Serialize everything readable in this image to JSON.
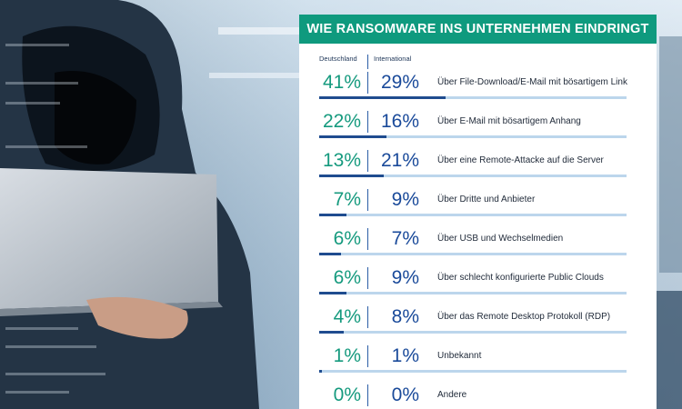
{
  "chart_data": {
    "type": "table",
    "title": "WIE RANSOMWARE INS UNTERNEHMEN EINDRINGT",
    "columns": [
      "Deutschland",
      "International"
    ],
    "rows": [
      {
        "label": "Über File-Download/E-Mail mit bösartigem Link",
        "de": "41%",
        "int": "29%",
        "bar": 41
      },
      {
        "label": "Über E-Mail mit bösartigem Anhang",
        "de": "22%",
        "int": "16%",
        "bar": 22
      },
      {
        "label": "Über eine Remote-Attacke auf die Server",
        "de": "13%",
        "int": "21%",
        "bar": 21
      },
      {
        "label": "Über Dritte und Anbieter",
        "de": "7%",
        "int": "9%",
        "bar": 9
      },
      {
        "label": "Über USB und Wechselmedien",
        "de": "6%",
        "int": "7%",
        "bar": 7
      },
      {
        "label": "Über schlecht konfigurierte Public Clouds",
        "de": "6%",
        "int": "9%",
        "bar": 9
      },
      {
        "label": "Über das Remote Desktop Protokoll (RDP)",
        "de": "4%",
        "int": "8%",
        "bar": 8
      },
      {
        "label": "Unbekannt",
        "de": "1%",
        "int": "1%",
        "bar": 1
      },
      {
        "label": "Andere",
        "de": "0%",
        "int": "0%",
        "bar": 0
      }
    ],
    "bar_max": 100
  },
  "colors": {
    "title_bg": "#0f9a7e",
    "germany_text": "#159a7e",
    "international_text": "#1a4a9a",
    "bar_fill": "#1f4c8f",
    "bar_track": "#bcd6ec"
  }
}
